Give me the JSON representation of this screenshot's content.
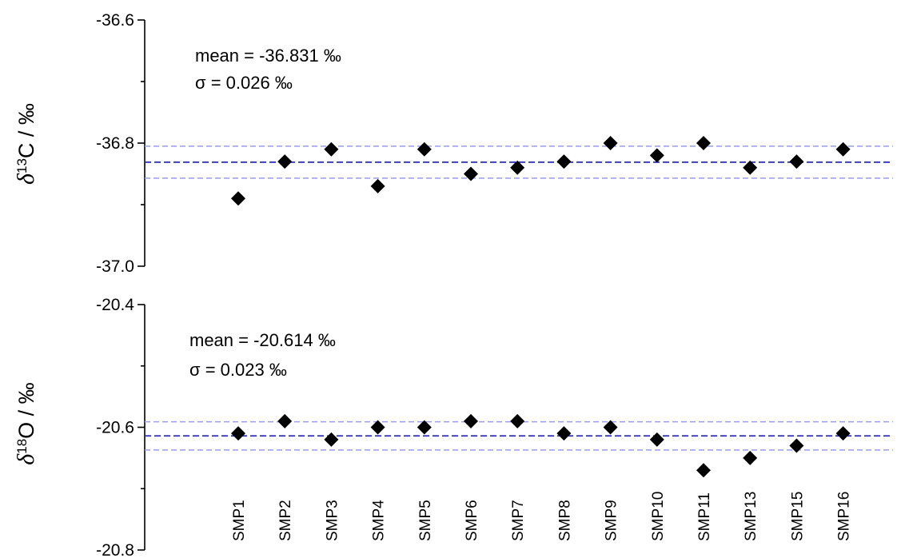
{
  "chart_data": [
    {
      "type": "scatter",
      "ylabel": {
        "symbol": "δ",
        "sup": "13",
        "rest": "C / ‰"
      },
      "ylim": [
        -37.0,
        -36.6
      ],
      "yticks": [
        "-36.6",
        "-36.8",
        "-37.0"
      ],
      "ytick_values": [
        -36.6,
        -36.8,
        -37.0
      ],
      "categories": [
        "SMP1",
        "SMP2",
        "SMP3",
        "SMP4",
        "SMP5",
        "SMP6",
        "SMP7",
        "SMP8",
        "SMP9",
        "SMP10",
        "SMP11",
        "SMP13",
        "SMP15",
        "SMP16"
      ],
      "values": [
        -36.89,
        -36.83,
        -36.81,
        -36.87,
        -36.81,
        -36.85,
        -36.84,
        -36.83,
        -36.8,
        -36.82,
        -36.8,
        -36.84,
        -36.83,
        -36.81
      ],
      "mean": -36.831,
      "sigma": 0.026,
      "annotations": [
        "mean = -36.831 ‰",
        "σ = 0.026 ‰"
      ],
      "marker": "diamond",
      "mean_line_color": "#2b2bb8",
      "sigma_line_color": "#9b9bf0"
    },
    {
      "type": "scatter",
      "ylabel": {
        "symbol": "δ",
        "sup": "18",
        "rest": "O / ‰"
      },
      "ylim": [
        -20.8,
        -20.4
      ],
      "yticks": [
        "-20.4",
        "-20.6",
        "-20.8"
      ],
      "ytick_values": [
        -20.4,
        -20.6,
        -20.8
      ],
      "categories": [
        "SMP1",
        "SMP2",
        "SMP3",
        "SMP4",
        "SMP5",
        "SMP6",
        "SMP7",
        "SMP8",
        "SMP9",
        "SMP10",
        "SMP11",
        "SMP13",
        "SMP15",
        "SMP16"
      ],
      "values": [
        -20.61,
        -20.59,
        -20.62,
        -20.6,
        -20.6,
        -20.59,
        -20.59,
        -20.61,
        -20.6,
        -20.62,
        -20.67,
        -20.65,
        -20.63,
        -20.61
      ],
      "mean": -20.614,
      "sigma": 0.023,
      "annotations": [
        "mean = -20.614 ‰",
        "σ = 0.023 ‰"
      ],
      "marker": "diamond",
      "mean_line_color": "#2b2bb8",
      "sigma_line_color": "#9b9bf0"
    }
  ]
}
